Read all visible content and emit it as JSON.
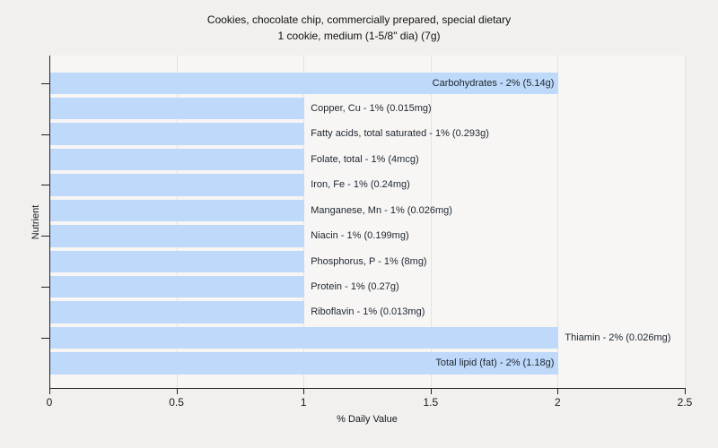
{
  "chart_data": {
    "type": "bar",
    "orientation": "horizontal",
    "title_lines": [
      "Cookies, chocolate chip, commercially prepared, special dietary",
      "1 cookie, medium (1-5/8\" dia) (7g)"
    ],
    "xlabel": "% Daily Value",
    "ylabel": "Nutrient",
    "xlim": [
      0,
      2.5
    ],
    "xticks": [
      0,
      0.5,
      1,
      1.5,
      2,
      2.5
    ],
    "ytick_bar_indices": [
      0,
      2,
      4,
      6,
      8,
      10
    ],
    "grid": "vertical gridlines at each x tick",
    "legend": "none",
    "colors": {
      "bar_fill": "#bed9f9",
      "plot_background": "#f7f6f4",
      "page_background": "#f1f0ee",
      "gridline": "#e3e2e0",
      "axis": "#222222",
      "label_text": "#1e2530"
    },
    "bars": [
      {
        "nutrient": "Carbohydrates",
        "value": 2,
        "amount": "5.14g",
        "label": "Carbohydrates - 2% (5.14g)",
        "label_position": "inside"
      },
      {
        "nutrient": "Copper, Cu",
        "value": 1,
        "amount": "0.015mg",
        "label": "Copper, Cu - 1% (0.015mg)",
        "label_position": "outside"
      },
      {
        "nutrient": "Fatty acids, total saturated",
        "value": 1,
        "amount": "0.293g",
        "label": "Fatty acids, total saturated - 1% (0.293g)",
        "label_position": "outside"
      },
      {
        "nutrient": "Folate, total",
        "value": 1,
        "amount": "4mcg",
        "label": "Folate, total - 1% (4mcg)",
        "label_position": "outside"
      },
      {
        "nutrient": "Iron, Fe",
        "value": 1,
        "amount": "0.24mg",
        "label": "Iron, Fe - 1% (0.24mg)",
        "label_position": "outside"
      },
      {
        "nutrient": "Manganese, Mn",
        "value": 1,
        "amount": "0.026mg",
        "label": "Manganese, Mn - 1% (0.026mg)",
        "label_position": "outside"
      },
      {
        "nutrient": "Niacin",
        "value": 1,
        "amount": "0.199mg",
        "label": "Niacin - 1% (0.199mg)",
        "label_position": "outside"
      },
      {
        "nutrient": "Phosphorus, P",
        "value": 1,
        "amount": "8mg",
        "label": "Phosphorus, P - 1% (8mg)",
        "label_position": "outside"
      },
      {
        "nutrient": "Protein",
        "value": 1,
        "amount": "0.27g",
        "label": "Protein - 1% (0.27g)",
        "label_position": "outside"
      },
      {
        "nutrient": "Riboflavin",
        "value": 1,
        "amount": "0.013mg",
        "label": "Riboflavin - 1% (0.013mg)",
        "label_position": "outside"
      },
      {
        "nutrient": "Thiamin",
        "value": 2,
        "amount": "0.026mg",
        "label": "Thiamin - 2% (0.026mg)",
        "label_position": "outside"
      },
      {
        "nutrient": "Total lipid (fat)",
        "value": 2,
        "amount": "1.18g",
        "label": "Total lipid (fat) - 2% (1.18g)",
        "label_position": "inside"
      }
    ]
  }
}
